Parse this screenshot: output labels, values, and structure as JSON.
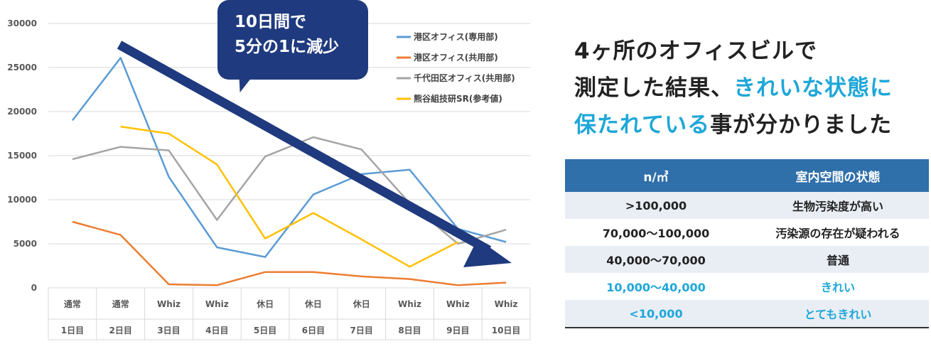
{
  "chart_data": {
    "type": "line",
    "y_ticks": [
      0,
      5000,
      10000,
      15000,
      20000,
      25000,
      30000
    ],
    "ylim": [
      0,
      30000
    ],
    "categories_top": [
      "通常",
      "通常",
      "Whiz",
      "Whiz",
      "休日",
      "休日",
      "休日",
      "Whiz",
      "Whiz",
      "Whiz"
    ],
    "categories_bottom": [
      "1日目",
      "2日目",
      "3日目",
      "4日目",
      "5日目",
      "6日目",
      "7日目",
      "8日目",
      "9日目",
      "10日目"
    ],
    "series": [
      {
        "name": "港区オフィス(専用部)",
        "color": "#5b9bd5",
        "values": [
          19000,
          26100,
          12600,
          4600,
          3500,
          10600,
          12900,
          13400,
          6700,
          5200
        ]
      },
      {
        "name": "港区オフィス(共用部)",
        "color": "#ed7d31",
        "values": [
          7500,
          6000,
          400,
          300,
          1800,
          1800,
          1300,
          1000,
          300,
          600
        ]
      },
      {
        "name": "千代田区オフィス(共用部)",
        "color": "#a5a5a5",
        "values": [
          14600,
          16000,
          15600,
          7700,
          14900,
          17100,
          15700,
          9600,
          5000,
          6600
        ]
      },
      {
        "name": "熊谷組技研SR(参考値)",
        "color": "#ffc000",
        "values": [
          null,
          18300,
          17500,
          14000,
          5600,
          8500,
          5500,
          2400,
          5200,
          null
        ]
      }
    ],
    "grid": true,
    "legend_position": "top-right"
  },
  "callout": {
    "line1": "10日間で",
    "line2": "5分の1に減少"
  },
  "headline": {
    "line1": "4ヶ所のオフィスビルで",
    "line2_normal": "測定した結果、",
    "line2_blue": "きれいな状態に",
    "line3_blue": "保たれている",
    "line3_normal": "事が分かりました"
  },
  "table": {
    "header": [
      "n/㎥",
      "室内空間の状態"
    ],
    "rows": [
      [
        "&gt;100,000",
        "生物汚染度が高い"
      ],
      [
        "70,000〜100,000",
        "汚染源の存在が疑われる"
      ],
      [
        "40,000〜70,000",
        "普通"
      ],
      [
        "10,000〜40,000",
        "きれい"
      ],
      [
        "&lt;10,000",
        "とてもきれい"
      ]
    ]
  }
}
